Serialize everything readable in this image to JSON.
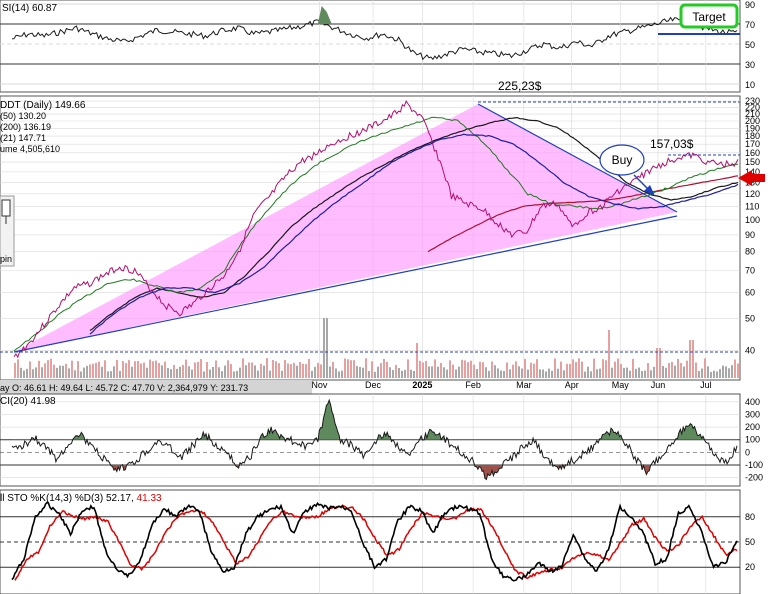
{
  "colors": {
    "background": "#ffffff",
    "grid": "#d9d9d9",
    "price": "#b0106e",
    "ma50": "#1a1a1a",
    "ma200": "#b01030",
    "ema21": "#1f7a1f",
    "wedge_fill": "#ff99ff",
    "trendline": "#1f3fbf",
    "volume_up": "#e6a0a0",
    "volume_down": "#a8a8a8",
    "osc_pos": "#5e8a5e",
    "osc_neg": "#a0524a",
    "stoch_k": "#000000",
    "stoch_d": "#e00000",
    "target_box": "#22cc22",
    "buy_arrow": "#1f3fbf",
    "red_arrow": "#e00000"
  },
  "header": {
    "rsi": "SI(14) 60.87",
    "symbol": "DDT (Daily) 149.66",
    "ma50": "(50) 130.20",
    "ma200": "(200) 136.19",
    "ema21": "(21) 147.71",
    "volume": "ume 4,505,610",
    "ohlc": "ay O: 46.61   H: 49.64   L: 45.72   C: 47.70   V: 2,364,979   Y: 231.73",
    "cci": "CI(20) 41.98",
    "sto_prefix": "ll STO %K(14,3) %D(3) 52.17, ",
    "sto_d": "41.33"
  },
  "annotations": {
    "target": "Target",
    "buy": "Buy",
    "peak": "225,23$",
    "level": "157,03$",
    "pin": "pin"
  },
  "chart_data": [
    {
      "type": "line",
      "panel": "RSI(14)",
      "yticks": [
        10,
        30,
        50,
        70,
        90
      ],
      "ylim": [
        10,
        90
      ],
      "reference_levels": [
        30,
        70
      ],
      "last_value": 60.87
    },
    {
      "type": "line",
      "panel": "Price (Daily)",
      "x_labels": [
        "Nov",
        "Dec",
        "2025",
        "Feb",
        "Mar",
        "Apr",
        "May",
        "Jun",
        "Jul"
      ],
      "scale": "log",
      "yticks": [
        40,
        50,
        60,
        70,
        80,
        90,
        100,
        110,
        120,
        130,
        140,
        150,
        160,
        170,
        180,
        190,
        200,
        210,
        220,
        230
      ],
      "ylim": [
        33,
        235
      ],
      "series": [
        {
          "name": "DDT (Daily)",
          "values": [
            38,
            42,
            48,
            55,
            62,
            64,
            68,
            72,
            70,
            62,
            55,
            52,
            56,
            62,
            68,
            82,
            105,
            118,
            135,
            150,
            158,
            170,
            178,
            186,
            195,
            206,
            225,
            205,
            160,
            118,
            112,
            108,
            98,
            90,
            92,
            110,
            112,
            95,
            105,
            110,
            122,
            130,
            140,
            148,
            155,
            157,
            150,
            147,
            149.66
          ]
        },
        {
          "name": "MA(50)",
          "values": [
            46,
            52,
            58,
            62,
            60,
            58,
            60,
            68,
            80,
            95,
            108,
            120,
            133,
            145,
            158,
            170,
            180,
            190,
            198,
            205,
            200,
            190,
            170,
            150,
            130,
            120,
            115,
            118,
            125,
            130.2
          ]
        },
        {
          "name": "MA(200)",
          "values": [
            80,
            88,
            96,
            104,
            110,
            112,
            113,
            114,
            116,
            120,
            124,
            128,
            132,
            136.19
          ]
        },
        {
          "name": "EMA(21)",
          "values": [
            40,
            45,
            52,
            58,
            64,
            66,
            63,
            60,
            62,
            70,
            90,
            110,
            130,
            148,
            162,
            175,
            185,
            195,
            205,
            200,
            175,
            145,
            120,
            112,
            110,
            108,
            112,
            118,
            125,
            135,
            142,
            147.71
          ]
        }
      ],
      "annotated_levels": [
        225.23,
        157.03
      ]
    },
    {
      "type": "bar",
      "panel": "Volume",
      "last_value": 4505610
    },
    {
      "type": "area",
      "panel": "CCI(20)",
      "yticks": [
        -200,
        -100,
        0,
        100,
        200,
        300,
        400
      ],
      "ylim": [
        -250,
        430
      ],
      "reference_levels": [
        -100,
        100
      ],
      "last_value": 41.98
    },
    {
      "type": "line",
      "panel": "Full STO %K(14,3) %D(3)",
      "yticks": [
        20,
        50,
        80
      ],
      "ylim": [
        0,
        100
      ],
      "reference_levels": [
        20,
        80
      ],
      "series": [
        {
          "name": "%K(14,3)",
          "last_value": 52.17
        },
        {
          "name": "%D(3)",
          "last_value": 41.33
        }
      ]
    }
  ]
}
